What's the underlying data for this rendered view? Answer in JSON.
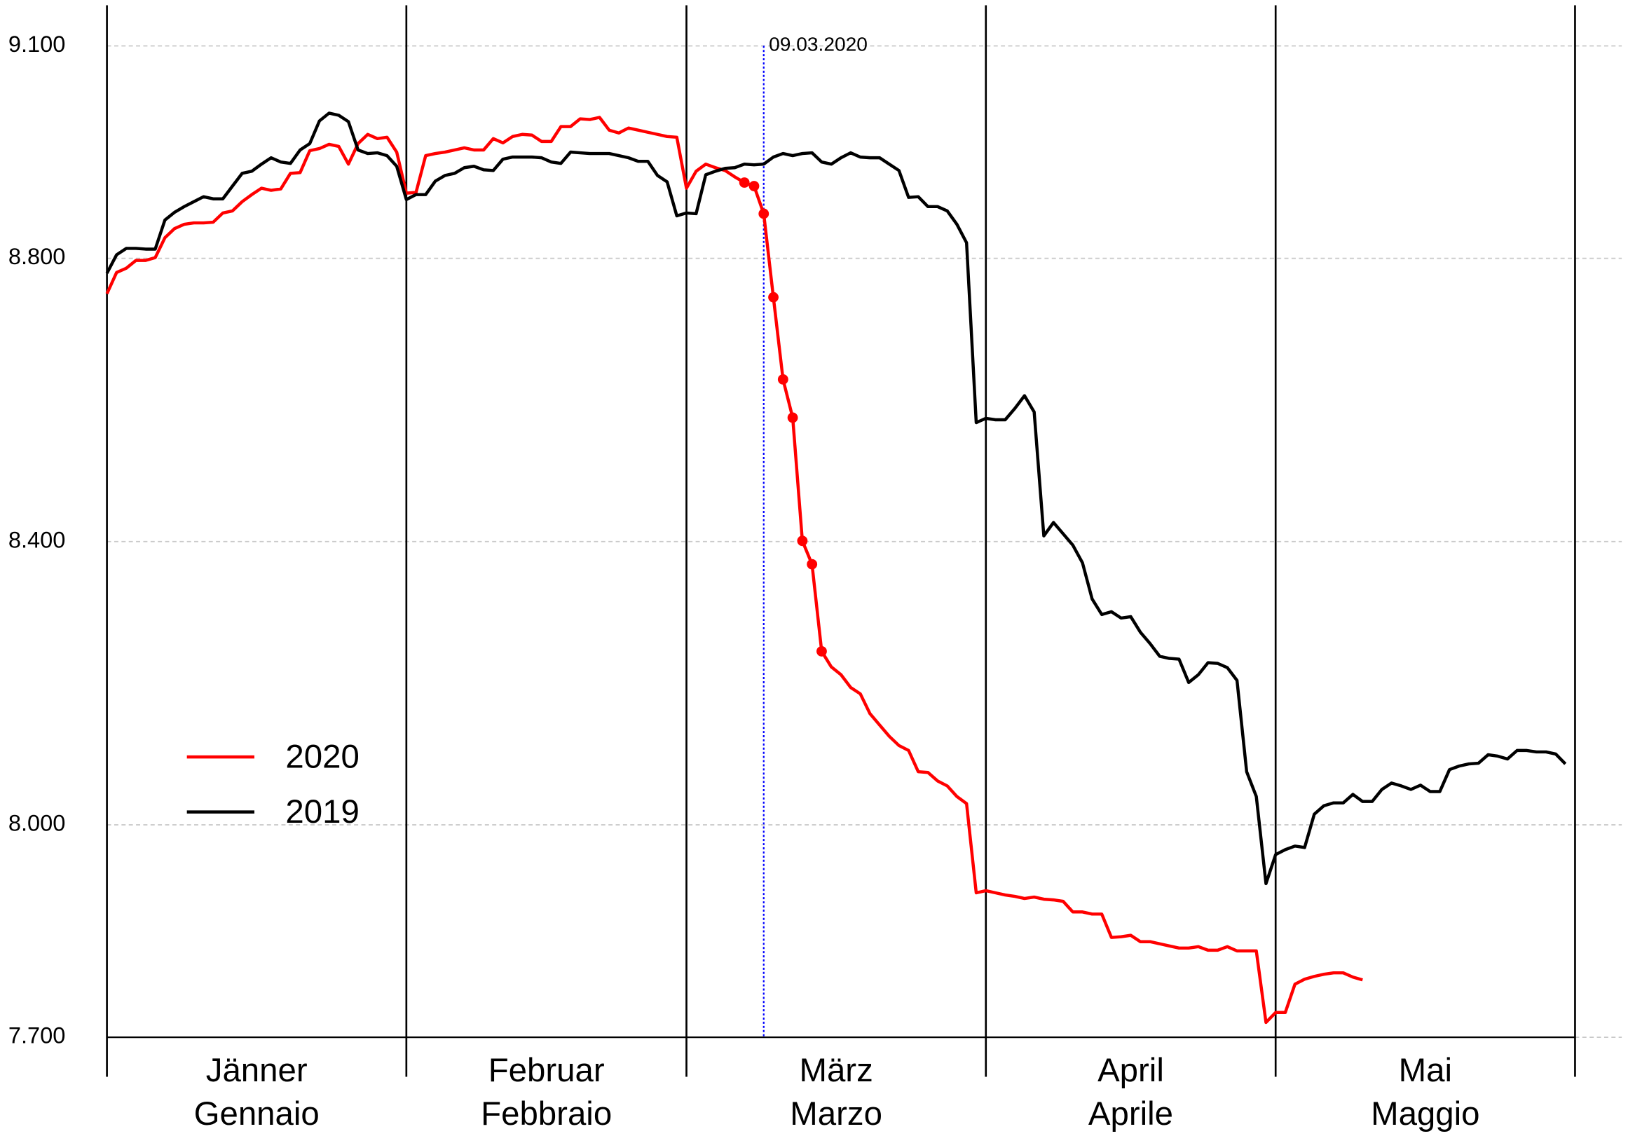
{
  "chart_data": {
    "type": "line",
    "categories": [
      [
        "Jänner",
        "Gennaio"
      ],
      [
        "Februar",
        "Febbraio"
      ],
      [
        "März",
        "Marzo"
      ],
      [
        "April",
        "Aprile"
      ],
      [
        "Mai",
        "Maggio"
      ]
    ],
    "x": [
      1,
      2,
      3,
      4,
      5,
      6,
      7,
      8,
      9,
      10,
      11,
      12,
      13,
      14,
      15,
      16,
      17,
      18,
      19,
      20,
      21,
      22,
      23,
      24,
      25,
      26,
      27,
      28,
      29,
      30,
      31,
      32,
      33,
      34,
      35,
      36,
      37,
      38,
      39,
      40,
      41,
      42,
      43,
      44,
      45,
      46,
      47,
      48,
      49,
      50,
      51,
      52,
      53,
      54,
      55,
      56,
      57,
      58,
      59,
      60,
      61,
      62,
      63,
      64,
      65,
      66,
      67,
      68,
      69,
      70,
      71,
      72,
      73,
      74,
      75,
      76,
      77,
      78,
      79,
      80,
      81,
      82,
      83,
      84,
      85,
      86,
      87,
      88,
      89,
      90,
      91,
      92,
      93,
      94,
      95,
      96,
      97,
      98,
      99,
      100,
      101,
      102,
      103,
      104,
      105,
      106,
      107,
      108,
      109,
      110,
      111,
      112,
      113,
      114,
      115,
      116,
      117,
      118,
      119,
      120,
      121,
      122,
      123,
      124,
      125,
      126,
      127,
      128,
      129,
      130,
      131,
      132,
      133,
      134,
      135,
      136,
      137,
      138,
      139,
      140,
      141,
      142,
      143,
      144,
      145,
      146,
      147,
      148,
      149,
      150,
      151,
      152
    ],
    "xlim": [
      1,
      153
    ],
    "xticks": [
      1,
      32,
      61,
      92,
      122,
      153
    ],
    "ylim": [
      7700,
      9150
    ],
    "yticks": [
      {
        "value": 7700,
        "label": "7.700"
      },
      {
        "value": 8000,
        "label": "8.000"
      },
      {
        "value": 8400,
        "label": "8.400"
      },
      {
        "value": 8800,
        "label": "8.800"
      },
      {
        "value": 9100,
        "label": "9.100"
      }
    ],
    "grid": true,
    "legend": "left",
    "annotation": {
      "x": 69,
      "label": "09.03.2020",
      "color": "#0000ff"
    },
    "series": [
      {
        "name": "2020",
        "color": "#ff0000",
        "highlight": {
          "from": 67,
          "to": 75
        },
        "values": [
          8750,
          8780,
          8786,
          8797,
          8797,
          8801,
          8829,
          8842,
          8848,
          8850,
          8850,
          8851,
          8864,
          8867,
          8880,
          8890,
          8899,
          8896,
          8898,
          8920,
          8921,
          8952,
          8955,
          8961,
          8958,
          8933,
          8962,
          8975,
          8969,
          8971,
          8950,
          8892,
          8893,
          8945,
          8948,
          8950,
          8953,
          8956,
          8953,
          8953,
          8969,
          8963,
          8972,
          8975,
          8974,
          8965,
          8965,
          8986,
          8986,
          8997,
          8996,
          8999,
          8981,
          8977,
          8984,
          8981,
          8978,
          8975,
          8972,
          8971,
          8899,
          8923,
          8933,
          8928,
          8924,
          8915,
          8907,
          8902,
          8863,
          8745,
          8629,
          8575,
          8401,
          8368,
          8245,
          8223,
          8212,
          8194,
          8185,
          8157,
          8141,
          8125,
          8112,
          8105,
          8075,
          8074,
          8062,
          8055,
          8040,
          8030,
          7904,
          7907,
          7904,
          7901,
          7899,
          7896,
          7898,
          7895,
          7894,
          7892,
          7877,
          7877,
          7874,
          7874,
          7841,
          7842,
          7844,
          7835,
          7835,
          7832,
          7829,
          7826,
          7826,
          7828,
          7823,
          7823,
          7828,
          7822,
          7822,
          7822,
          7721,
          7735,
          7735,
          7775,
          7782,
          7786,
          7789,
          7791,
          7791,
          7785,
          7781,
          null,
          null,
          null,
          null,
          null,
          null,
          null,
          null,
          null,
          null,
          null,
          null,
          null,
          null,
          null,
          null,
          null,
          null,
          null,
          null,
          null
        ]
      },
      {
        "name": "2019",
        "color": "#000000",
        "values": [
          8779,
          8805,
          8814,
          8814,
          8813,
          8813,
          8854,
          8865,
          8873,
          8880,
          8887,
          8884,
          8884,
          8902,
          8920,
          8923,
          8933,
          8942,
          8936,
          8934,
          8953,
          8962,
          8994,
          9005,
          9002,
          8993,
          8953,
          8948,
          8949,
          8945,
          8930,
          8883,
          8890,
          8890,
          8909,
          8917,
          8920,
          8928,
          8930,
          8925,
          8924,
          8940,
          8943,
          8943,
          8943,
          8942,
          8936,
          8934,
          8950,
          8949,
          8948,
          8948,
          8948,
          8945,
          8942,
          8937,
          8937,
          8917,
          8908,
          8860,
          8864,
          8863,
          8918,
          8923,
          8927,
          8928,
          8933,
          8932,
          8933,
          8943,
          8948,
          8945,
          8948,
          8949,
          8936,
          8933,
          8942,
          8949,
          8943,
          8942,
          8942,
          8933,
          8924,
          8886,
          8887,
          8873,
          8873,
          8867,
          8848,
          8822,
          8568,
          8574,
          8572,
          8572,
          8588,
          8606,
          8583,
          8408,
          8427,
          8411,
          8395,
          8370,
          8319,
          8297,
          8301,
          8292,
          8294,
          8272,
          8256,
          8238,
          8235,
          8234,
          8201,
          8212,
          8229,
          8228,
          8222,
          8204,
          8075,
          8040,
          7917,
          7958,
          7965,
          7970,
          7968,
          8015,
          8027,
          8031,
          8031,
          8043,
          8033,
          8033,
          8050,
          8059,
          8055,
          8050,
          8056,
          8047,
          8047,
          8078,
          8083,
          8086,
          8087,
          8099,
          8097,
          8093,
          8105,
          8105,
          8103,
          8103,
          8100,
          8086
        ]
      }
    ]
  }
}
